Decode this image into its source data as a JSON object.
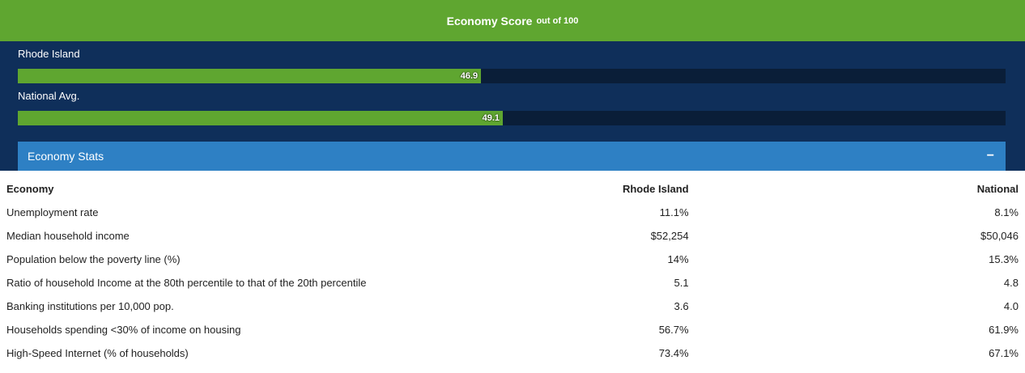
{
  "header": {
    "title": "Economy Score",
    "subtitle": "out of",
    "max": 100
  },
  "scores": [
    {
      "name": "Rhode Island",
      "value": 46.9
    },
    {
      "name": "National Avg.",
      "value": 49.1
    }
  ],
  "panel": {
    "title": "Economy Stats",
    "toggle": "−"
  },
  "table": {
    "columns": [
      "Economy",
      "Rhode Island",
      "National"
    ],
    "rows": [
      [
        "Unemployment rate",
        "11.1%",
        "8.1%"
      ],
      [
        "Median household income",
        "$52,254",
        "$50,046"
      ],
      [
        "Population below the poverty line (%)",
        "14%",
        "15.3%"
      ],
      [
        "Ratio of household Income at the 80th percentile to that of the 20th percentile",
        "5.1",
        "4.8"
      ],
      [
        "Banking institutions per 10,000 pop.",
        "3.6",
        "4.0"
      ],
      [
        "Households spending <30% of income on housing",
        "56.7%",
        "61.9%"
      ],
      [
        "High-Speed Internet (% of households)",
        "73.4%",
        "67.1%"
      ]
    ]
  }
}
